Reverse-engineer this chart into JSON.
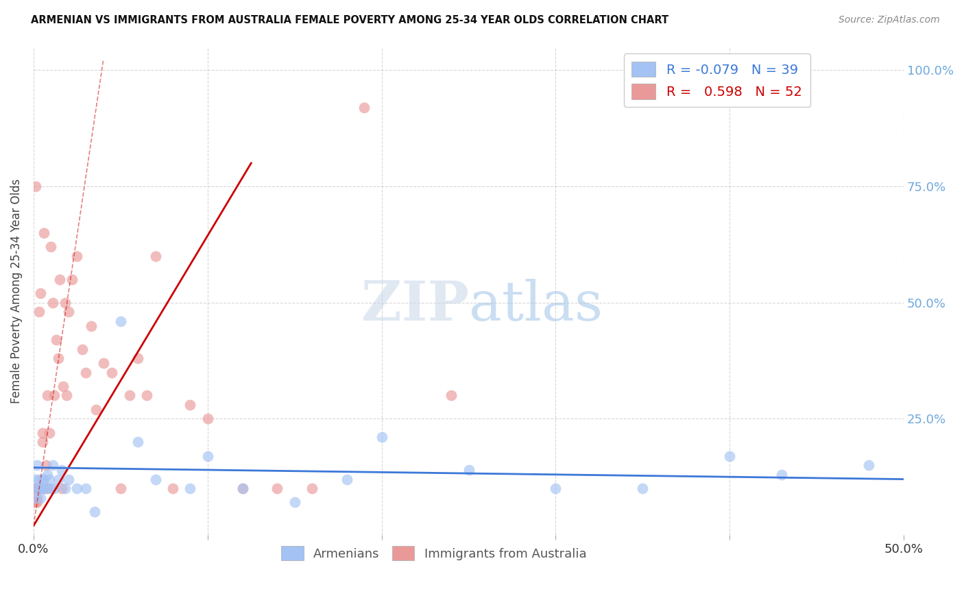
{
  "title": "ARMENIAN VS IMMIGRANTS FROM AUSTRALIA FEMALE POVERTY AMONG 25-34 YEAR OLDS CORRELATION CHART",
  "source": "Source: ZipAtlas.com",
  "ylabel": "Female Poverty Among 25-34 Year Olds",
  "xlim": [
    0,
    0.5
  ],
  "ylim": [
    0,
    1.05
  ],
  "blue_color": "#a4c2f4",
  "pink_color": "#ea9999",
  "blue_line_color": "#3c78d8",
  "pink_line_color": "#cc0000",
  "legend_R_blue": "-0.079",
  "legend_N_blue": "39",
  "legend_R_pink": "0.598",
  "legend_N_pink": "52",
  "arm_x": [
    0.001,
    0.001,
    0.002,
    0.002,
    0.003,
    0.003,
    0.004,
    0.004,
    0.005,
    0.005,
    0.006,
    0.007,
    0.008,
    0.009,
    0.01,
    0.011,
    0.012,
    0.014,
    0.016,
    0.018,
    0.02,
    0.025,
    0.03,
    0.035,
    0.05,
    0.06,
    0.07,
    0.09,
    0.1,
    0.12,
    0.15,
    0.18,
    0.2,
    0.25,
    0.3,
    0.35,
    0.4,
    0.43,
    0.48
  ],
  "arm_y": [
    0.12,
    0.08,
    0.1,
    0.15,
    0.1,
    0.12,
    0.1,
    0.08,
    0.12,
    0.1,
    0.12,
    0.1,
    0.13,
    0.12,
    0.1,
    0.15,
    0.1,
    0.12,
    0.14,
    0.1,
    0.12,
    0.1,
    0.1,
    0.05,
    0.46,
    0.2,
    0.12,
    0.1,
    0.17,
    0.1,
    0.07,
    0.12,
    0.21,
    0.14,
    0.1,
    0.1,
    0.17,
    0.13,
    0.15
  ],
  "aus_x": [
    0.0,
    0.0,
    0.001,
    0.001,
    0.001,
    0.002,
    0.002,
    0.002,
    0.003,
    0.003,
    0.004,
    0.004,
    0.005,
    0.005,
    0.006,
    0.006,
    0.007,
    0.008,
    0.008,
    0.009,
    0.01,
    0.011,
    0.012,
    0.013,
    0.014,
    0.015,
    0.016,
    0.017,
    0.018,
    0.019,
    0.02,
    0.022,
    0.025,
    0.028,
    0.03,
    0.033,
    0.036,
    0.04,
    0.045,
    0.05,
    0.055,
    0.06,
    0.065,
    0.07,
    0.08,
    0.09,
    0.1,
    0.12,
    0.14,
    0.16,
    0.19,
    0.24
  ],
  "aus_y": [
    0.1,
    0.07,
    0.1,
    0.75,
    0.07,
    0.08,
    0.1,
    0.07,
    0.48,
    0.1,
    0.1,
    0.52,
    0.22,
    0.2,
    0.1,
    0.65,
    0.15,
    0.1,
    0.3,
    0.22,
    0.62,
    0.5,
    0.3,
    0.42,
    0.38,
    0.55,
    0.1,
    0.32,
    0.5,
    0.3,
    0.48,
    0.55,
    0.6,
    0.4,
    0.35,
    0.45,
    0.27,
    0.37,
    0.35,
    0.1,
    0.3,
    0.38,
    0.3,
    0.6,
    0.1,
    0.28,
    0.25,
    0.1,
    0.1,
    0.1,
    0.92,
    0.3
  ]
}
